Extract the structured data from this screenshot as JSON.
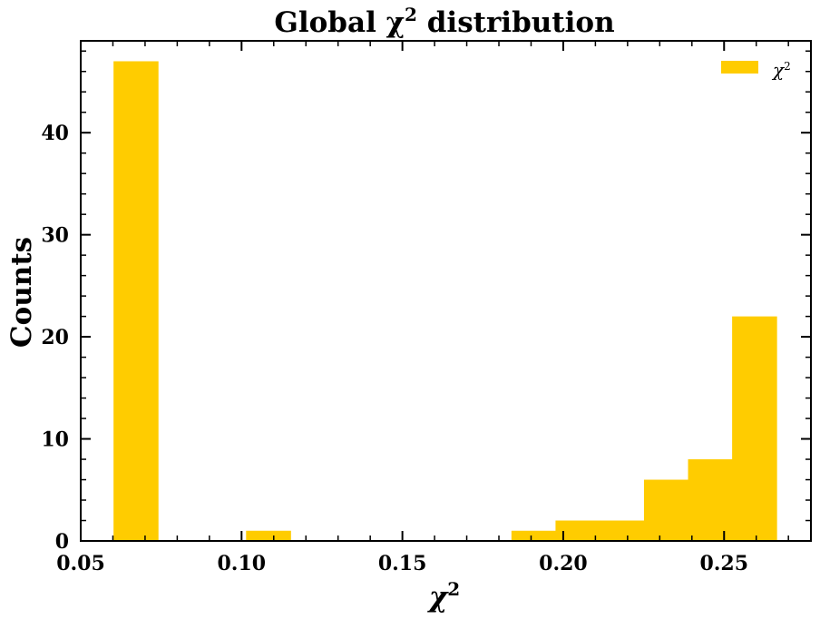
{
  "chart_data": {
    "type": "bar",
    "title_text": "Global χ",
    "title_text_2": " distribution",
    "xlabel": "χ",
    "ylabel": "Counts",
    "superscript": "2",
    "bin_edges": [
      0.0602,
      0.074,
      0.0877,
      0.1014,
      0.1152,
      0.1289,
      0.1427,
      0.1564,
      0.1701,
      0.1839,
      0.1976,
      0.2113,
      0.2251,
      0.2388,
      0.2525,
      0.2663
    ],
    "values": [
      47,
      0,
      0,
      1,
      0,
      0,
      0,
      0,
      0,
      1,
      2,
      2,
      6,
      8,
      22
    ],
    "xlim": [
      0.05,
      0.277
    ],
    "ylim": [
      0,
      49
    ],
    "x_ticks": [
      0.05,
      0.1,
      0.15,
      0.2,
      0.25
    ],
    "x_tick_labels": [
      "0.05",
      "0.10",
      "0.15",
      "0.20",
      "0.25"
    ],
    "y_ticks": [
      0,
      10,
      20,
      30,
      40
    ],
    "y_tick_labels": [
      "0",
      "10",
      "20",
      "30",
      "40"
    ],
    "legend": {
      "label": "χ",
      "position": "top-right"
    },
    "series": [
      {
        "name": "χ²",
        "color": "#ffcc00"
      }
    ],
    "grid": false
  }
}
